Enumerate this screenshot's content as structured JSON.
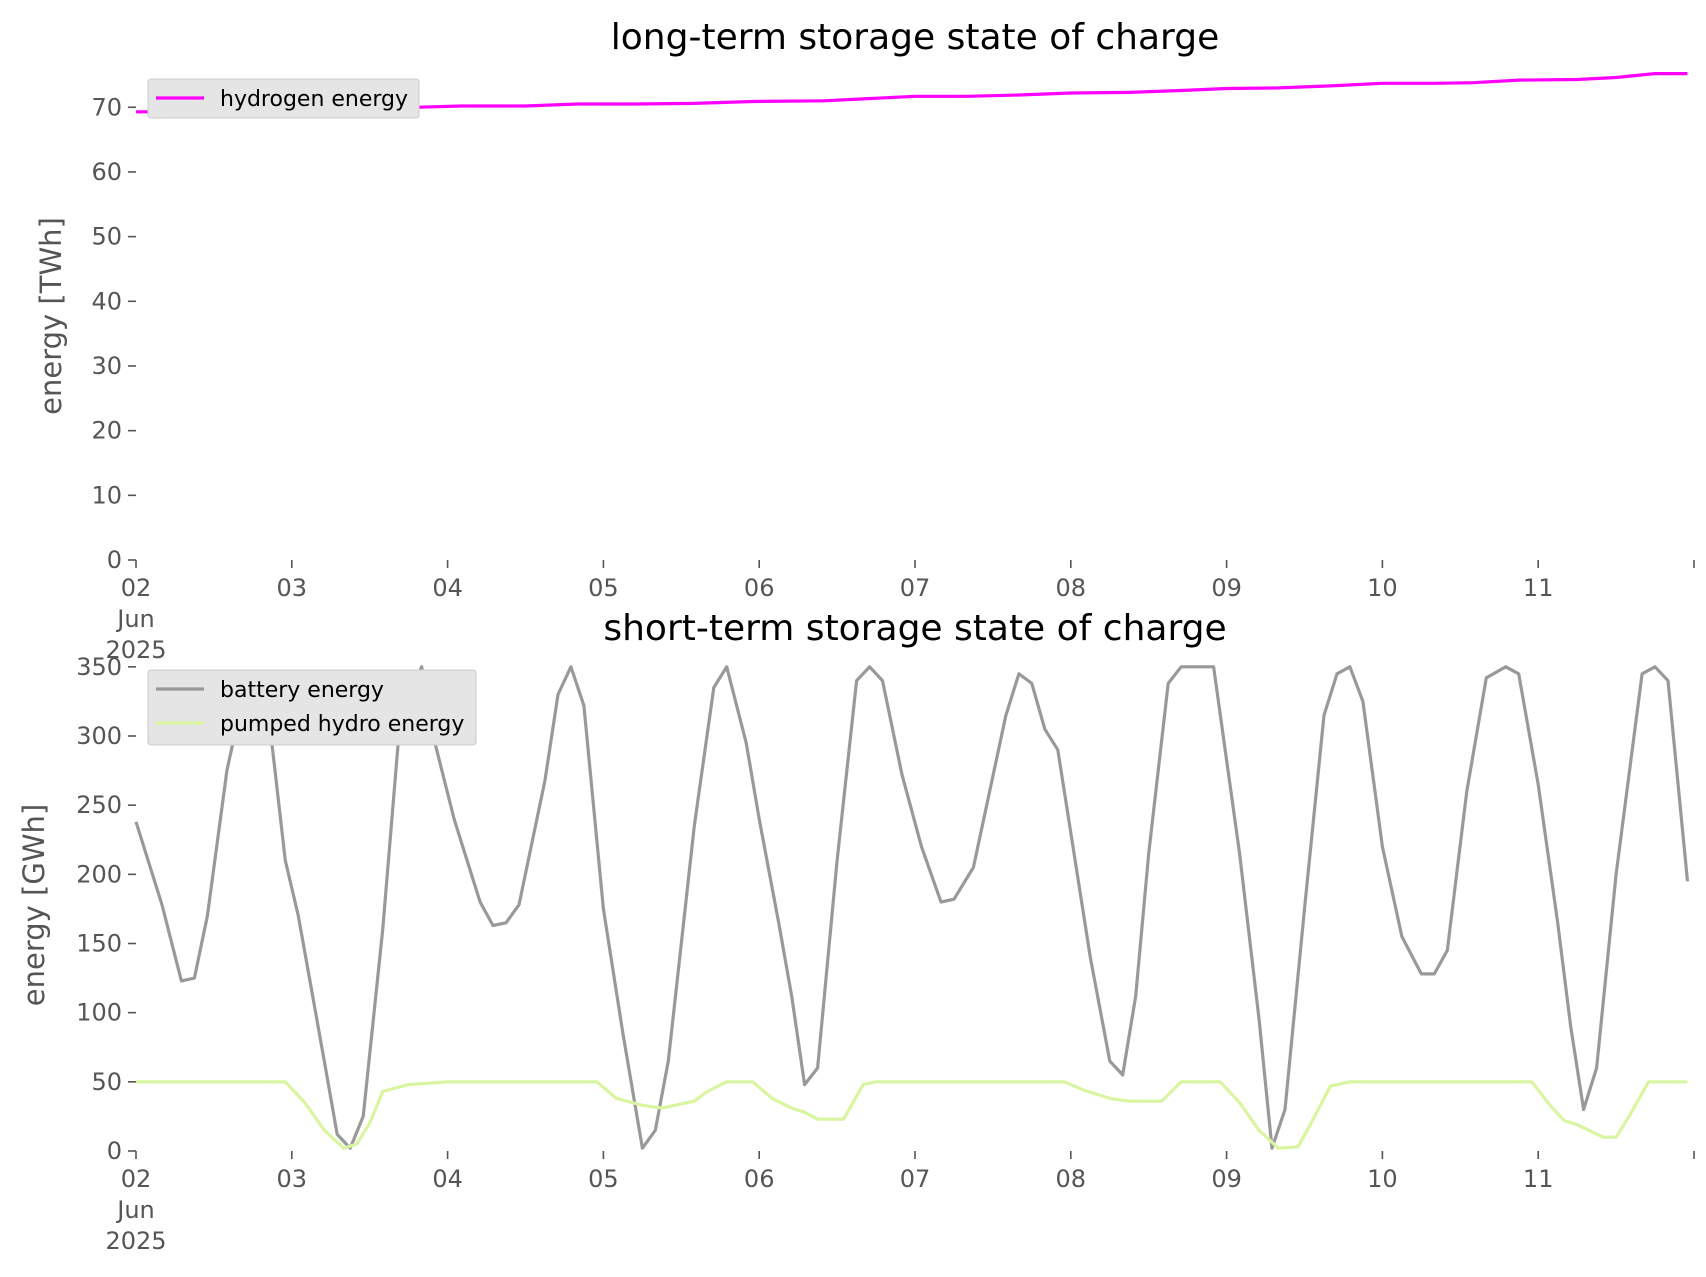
{
  "chart_data": [
    {
      "type": "line",
      "title": "long-term storage state of charge",
      "xlabel": "",
      "ylabel": "energy [TWh]",
      "ylim": [
        0,
        77
      ],
      "yticks": [
        0,
        10,
        20,
        30,
        40,
        50,
        60,
        70
      ],
      "xlim": [
        "2025-06-02 00:00",
        "2025-06-11 23:00"
      ],
      "xticks": [
        {
          "date": "2025-06-02",
          "label": [
            "02",
            "Jun",
            "2025"
          ]
        },
        {
          "date": "2025-06-03",
          "label": [
            "03"
          ]
        },
        {
          "date": "2025-06-04",
          "label": [
            "04"
          ]
        },
        {
          "date": "2025-06-05",
          "label": [
            "05"
          ]
        },
        {
          "date": "2025-06-06",
          "label": [
            "06"
          ]
        },
        {
          "date": "2025-06-07",
          "label": [
            "07"
          ]
        },
        {
          "date": "2025-06-08",
          "label": [
            "08"
          ]
        },
        {
          "date": "2025-06-09",
          "label": [
            "09"
          ]
        },
        {
          "date": "2025-06-10",
          "label": [
            "10"
          ]
        },
        {
          "date": "2025-06-11",
          "label": [
            "11"
          ]
        }
      ],
      "grid": false,
      "legend_position": "top-left",
      "series": [
        {
          "name": "hydrogen energy",
          "color": "#ff00ff",
          "points": [
            [
              "2025-06-02 00:00",
              69.3
            ],
            [
              "2025-06-02 07:00",
              69.3
            ],
            [
              "2025-06-02 14:00",
              69.6
            ],
            [
              "2025-06-02 20:00",
              69.8
            ],
            [
              "2025-06-03 07:00",
              69.8
            ],
            [
              "2025-06-03 13:00",
              69.7
            ],
            [
              "2025-06-03 19:00",
              70.0
            ],
            [
              "2025-06-04 02:00",
              70.2
            ],
            [
              "2025-06-04 12:00",
              70.2
            ],
            [
              "2025-06-04 20:00",
              70.5
            ],
            [
              "2025-06-05 05:00",
              70.5
            ],
            [
              "2025-06-05 14:00",
              70.6
            ],
            [
              "2025-06-05 23:00",
              70.9
            ],
            [
              "2025-06-06 10:00",
              71.0
            ],
            [
              "2025-06-06 16:00",
              71.3
            ],
            [
              "2025-06-07 00:00",
              71.7
            ],
            [
              "2025-06-07 08:00",
              71.7
            ],
            [
              "2025-06-07 16:00",
              71.9
            ],
            [
              "2025-06-08 00:00",
              72.2
            ],
            [
              "2025-06-08 09:00",
              72.3
            ],
            [
              "2025-06-08 17:00",
              72.6
            ],
            [
              "2025-06-09 00:00",
              72.9
            ],
            [
              "2025-06-09 08:00",
              73.0
            ],
            [
              "2025-06-09 16:00",
              73.3
            ],
            [
              "2025-06-10 00:00",
              73.7
            ],
            [
              "2025-06-10 08:00",
              73.7
            ],
            [
              "2025-06-10 14:00",
              73.8
            ],
            [
              "2025-06-10 21:00",
              74.2
            ],
            [
              "2025-06-11 06:00",
              74.3
            ],
            [
              "2025-06-11 12:00",
              74.6
            ],
            [
              "2025-06-11 18:00",
              75.2
            ],
            [
              "2025-06-11 23:00",
              75.2
            ]
          ]
        }
      ]
    },
    {
      "type": "line",
      "title": "short-term storage state of charge",
      "xlabel": "",
      "ylabel": "energy [GWh]",
      "ylim": [
        0,
        360
      ],
      "yticks": [
        0,
        50,
        100,
        150,
        200,
        250,
        300,
        350
      ],
      "xlim": [
        "2025-06-02 00:00",
        "2025-06-11 23:00"
      ],
      "xticks": [
        {
          "date": "2025-06-02",
          "label": [
            "02",
            "Jun",
            "2025"
          ]
        },
        {
          "date": "2025-06-03",
          "label": [
            "03"
          ]
        },
        {
          "date": "2025-06-04",
          "label": [
            "04"
          ]
        },
        {
          "date": "2025-06-05",
          "label": [
            "05"
          ]
        },
        {
          "date": "2025-06-06",
          "label": [
            "06"
          ]
        },
        {
          "date": "2025-06-07",
          "label": [
            "07"
          ]
        },
        {
          "date": "2025-06-08",
          "label": [
            "08"
          ]
        },
        {
          "date": "2025-06-09",
          "label": [
            "09"
          ]
        },
        {
          "date": "2025-06-10",
          "label": [
            "10"
          ]
        },
        {
          "date": "2025-06-11",
          "label": [
            "11"
          ]
        }
      ],
      "grid": false,
      "legend_position": "top-left",
      "series": [
        {
          "name": "battery energy",
          "color": "#999999",
          "points": [
            [
              "2025-06-02 00:00",
              238
            ],
            [
              "2025-06-02 04:00",
              178
            ],
            [
              "2025-06-02 07:00",
              123
            ],
            [
              "2025-06-02 09:00",
              125
            ],
            [
              "2025-06-02 11:00",
              170
            ],
            [
              "2025-06-02 14:00",
              275
            ],
            [
              "2025-06-02 17:00",
              340
            ],
            [
              "2025-06-02 20:00",
              333
            ],
            [
              "2025-06-02 23:00",
              210
            ],
            [
              "2025-06-03 01:00",
              170
            ],
            [
              "2025-06-03 05:00",
              65
            ],
            [
              "2025-06-03 07:00",
              12
            ],
            [
              "2025-06-03 09:00",
              2
            ],
            [
              "2025-06-03 11:00",
              25
            ],
            [
              "2025-06-03 14:00",
              160
            ],
            [
              "2025-06-03 17:00",
              330
            ],
            [
              "2025-06-03 19:00",
              338
            ],
            [
              "2025-06-03 20:00",
              350
            ],
            [
              "2025-06-03 22:00",
              296
            ],
            [
              "2025-06-04 01:00",
              240
            ],
            [
              "2025-06-04 05:00",
              180
            ],
            [
              "2025-06-04 07:00",
              163
            ],
            [
              "2025-06-04 09:00",
              165
            ],
            [
              "2025-06-04 11:00",
              178
            ],
            [
              "2025-06-04 15:00",
              268
            ],
            [
              "2025-06-04 17:00",
              330
            ],
            [
              "2025-06-04 19:00",
              350
            ],
            [
              "2025-06-04 21:00",
              322
            ],
            [
              "2025-06-05 00:00",
              175
            ],
            [
              "2025-06-05 03:00",
              85
            ],
            [
              "2025-06-05 06:00",
              2
            ],
            [
              "2025-06-05 08:00",
              15
            ],
            [
              "2025-06-05 10:00",
              65
            ],
            [
              "2025-06-05 14:00",
              235
            ],
            [
              "2025-06-05 17:00",
              335
            ],
            [
              "2025-06-05 19:00",
              350
            ],
            [
              "2025-06-05 22:00",
              295
            ],
            [
              "2025-06-06 00:00",
              240
            ],
            [
              "2025-06-06 03:00",
              165
            ],
            [
              "2025-06-06 05:00",
              112
            ],
            [
              "2025-06-06 07:00",
              48
            ],
            [
              "2025-06-06 09:00",
              60
            ],
            [
              "2025-06-06 12:00",
              210
            ],
            [
              "2025-06-06 15:00",
              340
            ],
            [
              "2025-06-06 17:00",
              350
            ],
            [
              "2025-06-06 19:00",
              340
            ],
            [
              "2025-06-06 22:00",
              272
            ],
            [
              "2025-06-07 01:00",
              220
            ],
            [
              "2025-06-07 04:00",
              180
            ],
            [
              "2025-06-07 06:00",
              182
            ],
            [
              "2025-06-07 09:00",
              205
            ],
            [
              "2025-06-07 14:00",
              315
            ],
            [
              "2025-06-07 16:00",
              345
            ],
            [
              "2025-06-07 18:00",
              338
            ],
            [
              "2025-06-07 20:00",
              305
            ],
            [
              "2025-06-07 22:00",
              290
            ],
            [
              "2025-06-08 03:00",
              140
            ],
            [
              "2025-06-08 06:00",
              65
            ],
            [
              "2025-06-08 08:00",
              55
            ],
            [
              "2025-06-08 10:00",
              112
            ],
            [
              "2025-06-08 12:00",
              215
            ],
            [
              "2025-06-08 15:00",
              338
            ],
            [
              "2025-06-08 17:00",
              350
            ],
            [
              "2025-06-08 20:00",
              350
            ],
            [
              "2025-06-08 22:00",
              350
            ],
            [
              "2025-06-09 02:00",
              215
            ],
            [
              "2025-06-09 05:00",
              95
            ],
            [
              "2025-06-09 07:00",
              2
            ],
            [
              "2025-06-09 09:00",
              30
            ],
            [
              "2025-06-09 12:00",
              175
            ],
            [
              "2025-06-09 15:00",
              315
            ],
            [
              "2025-06-09 17:00",
              345
            ],
            [
              "2025-06-09 19:00",
              350
            ],
            [
              "2025-06-09 21:00",
              325
            ],
            [
              "2025-06-10 00:00",
              220
            ],
            [
              "2025-06-10 03:00",
              155
            ],
            [
              "2025-06-10 06:00",
              128
            ],
            [
              "2025-06-10 08:00",
              128
            ],
            [
              "2025-06-10 10:00",
              145
            ],
            [
              "2025-06-10 13:00",
              260
            ],
            [
              "2025-06-10 16:00",
              342
            ],
            [
              "2025-06-10 19:00",
              350
            ],
            [
              "2025-06-10 21:00",
              345
            ],
            [
              "2025-06-11 00:00",
              265
            ],
            [
              "2025-06-11 03:00",
              165
            ],
            [
              "2025-06-11 05:00",
              90
            ],
            [
              "2025-06-11 07:00",
              30
            ],
            [
              "2025-06-11 09:00",
              60
            ],
            [
              "2025-06-11 12:00",
              200
            ],
            [
              "2025-06-11 16:00",
              345
            ],
            [
              "2025-06-11 18:00",
              350
            ],
            [
              "2025-06-11 20:00",
              340
            ],
            [
              "2025-06-11 23:00",
              195
            ]
          ]
        },
        {
          "name": "pumped hydro energy",
          "color": "#d9f5a0",
          "points": [
            [
              "2025-06-02 00:00",
              50
            ],
            [
              "2025-06-02 23:00",
              50
            ],
            [
              "2025-06-03 02:00",
              35
            ],
            [
              "2025-06-03 05:00",
              15
            ],
            [
              "2025-06-03 08:00",
              2
            ],
            [
              "2025-06-03 10:00",
              5
            ],
            [
              "2025-06-03 12:00",
              20
            ],
            [
              "2025-06-03 14:00",
              43
            ],
            [
              "2025-06-03 18:00",
              48
            ],
            [
              "2025-06-04 00:00",
              50
            ],
            [
              "2025-06-04 23:00",
              50
            ],
            [
              "2025-06-05 02:00",
              38
            ],
            [
              "2025-06-05 06:00",
              33
            ],
            [
              "2025-06-05 09:00",
              31
            ],
            [
              "2025-06-05 14:00",
              36
            ],
            [
              "2025-06-05 16:00",
              43
            ],
            [
              "2025-06-05 19:00",
              50
            ],
            [
              "2025-06-05 23:00",
              50
            ],
            [
              "2025-06-06 02:00",
              38
            ],
            [
              "2025-06-06 05:00",
              31
            ],
            [
              "2025-06-06 07:00",
              28
            ],
            [
              "2025-06-06 09:00",
              23
            ],
            [
              "2025-06-06 13:00",
              23
            ],
            [
              "2025-06-06 16:00",
              48
            ],
            [
              "2025-06-06 18:00",
              50
            ],
            [
              "2025-06-07 23:00",
              50
            ],
            [
              "2025-06-08 02:00",
              44
            ],
            [
              "2025-06-08 06:00",
              38
            ],
            [
              "2025-06-08 09:00",
              36
            ],
            [
              "2025-06-08 14:00",
              36
            ],
            [
              "2025-06-08 17:00",
              50
            ],
            [
              "2025-06-08 23:00",
              50
            ],
            [
              "2025-06-09 02:00",
              35
            ],
            [
              "2025-06-09 05:00",
              15
            ],
            [
              "2025-06-09 08:00",
              2
            ],
            [
              "2025-06-09 11:00",
              3
            ],
            [
              "2025-06-09 13:00",
              20
            ],
            [
              "2025-06-09 16:00",
              47
            ],
            [
              "2025-06-09 19:00",
              50
            ],
            [
              "2025-06-10 23:00",
              50
            ],
            [
              "2025-06-11 02:00",
              32
            ],
            [
              "2025-06-11 04:00",
              22
            ],
            [
              "2025-06-11 06:00",
              19
            ],
            [
              "2025-06-11 10:00",
              10
            ],
            [
              "2025-06-11 12:00",
              10
            ],
            [
              "2025-06-11 14:00",
              25
            ],
            [
              "2025-06-11 17:00",
              50
            ],
            [
              "2025-06-11 23:00",
              50
            ]
          ]
        }
      ]
    }
  ]
}
